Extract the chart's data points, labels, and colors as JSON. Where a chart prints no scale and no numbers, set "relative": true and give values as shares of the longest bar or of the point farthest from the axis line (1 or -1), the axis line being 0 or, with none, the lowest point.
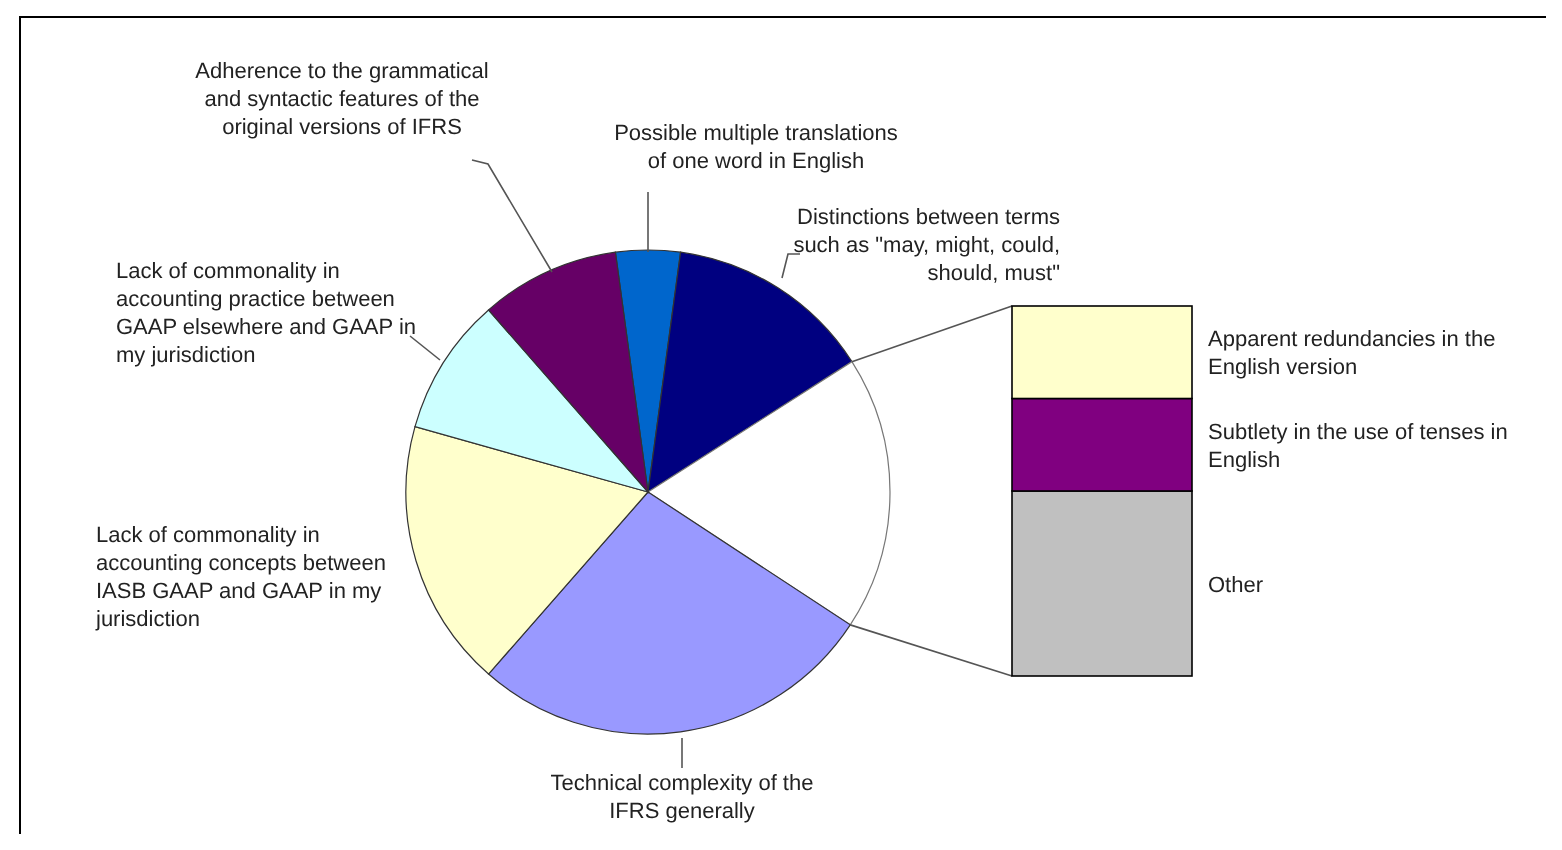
{
  "chart_data": [
    {
      "type": "pie",
      "categories": [
        "Possible multiple translations of one word in English",
        "Distinctions between terms such as \"may, might, could, should, must\"",
        null,
        "Technical complexity of the IFRS generally",
        "Lack of commonality in accounting concepts between IASB GAAP and GAAP in my jurisdiction",
        "Lack of commonality in accounting practice between GAAP elsewhere and GAAP in my jurisdiction",
        "Adherence to the grammatical and syntactic features of the original versions of IFRS"
      ],
      "values": [
        4.3,
        13.8,
        18.3,
        27.2,
        17.9,
        9.2,
        9.3
      ],
      "colors": [
        "#0066cc",
        "#000080",
        "#ffffff",
        "#9999ff",
        "#ffffcc",
        "#ccffff",
        "#660066"
      ]
    },
    {
      "type": "bar",
      "stacked": true,
      "relative": true,
      "categories": [
        null
      ],
      "series": [
        {
          "name": "Other",
          "color": "#c0c0c0",
          "values": [
            0.5
          ]
        },
        {
          "name": "Subtlety in the use of tenses in English",
          "color": "#800080",
          "values": [
            0.25
          ]
        },
        {
          "name": "Apparent redundancies in the English version",
          "color": "#ffffcc",
          "values": [
            0.25
          ]
        }
      ]
    }
  ]
}
